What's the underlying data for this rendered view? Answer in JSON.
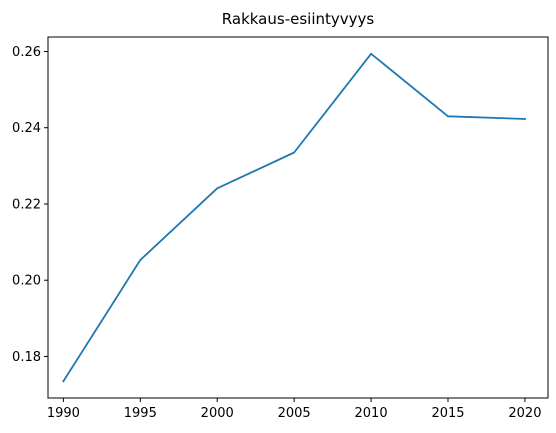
{
  "chart_data": {
    "type": "line",
    "title": "Rakkaus-esiintyvyys",
    "xlabel": "",
    "ylabel": "",
    "x": [
      1990,
      1995,
      2000,
      2005,
      2010,
      2015,
      2020
    ],
    "series": [
      {
        "values": [
          0.1735,
          0.2053,
          0.2241,
          0.2335,
          0.2594,
          0.243,
          0.2423
        ],
        "color": "#1f77b4"
      }
    ],
    "xticks": [
      1990,
      1995,
      2000,
      2005,
      2010,
      2015,
      2020
    ],
    "xtick_labels": [
      "1990",
      "1995",
      "2000",
      "2005",
      "2010",
      "2015",
      "2020"
    ],
    "yticks": [
      0.18,
      0.2,
      0.22,
      0.24,
      0.26
    ],
    "ytick_labels": [
      "0.18",
      "0.20",
      "0.22",
      "0.24",
      "0.26"
    ],
    "xlim": [
      1989,
      2021.5
    ],
    "ylim": [
      0.1691,
      0.2638
    ],
    "grid": false,
    "legend": "none"
  }
}
